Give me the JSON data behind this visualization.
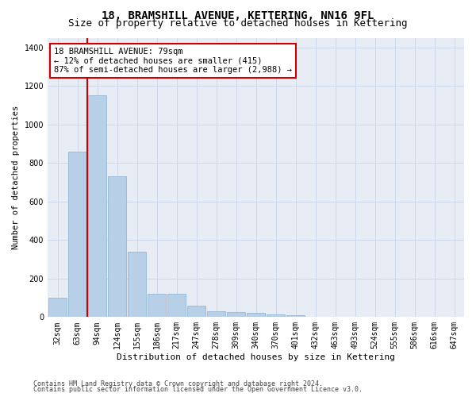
{
  "title": "18, BRAMSHILL AVENUE, KETTERING, NN16 9FL",
  "subtitle": "Size of property relative to detached houses in Kettering",
  "xlabel": "Distribution of detached houses by size in Kettering",
  "ylabel": "Number of detached properties",
  "categories": [
    "32sqm",
    "63sqm",
    "94sqm",
    "124sqm",
    "155sqm",
    "186sqm",
    "217sqm",
    "247sqm",
    "278sqm",
    "309sqm",
    "340sqm",
    "370sqm",
    "401sqm",
    "432sqm",
    "463sqm",
    "493sqm",
    "524sqm",
    "555sqm",
    "586sqm",
    "616sqm",
    "647sqm"
  ],
  "values": [
    100,
    860,
    1150,
    730,
    340,
    120,
    120,
    60,
    30,
    25,
    20,
    15,
    8,
    0,
    0,
    0,
    0,
    0,
    0,
    0,
    0
  ],
  "bar_color": "#b8cfe8",
  "bar_edge_color": "#8ab0d0",
  "red_line_color": "#cc0000",
  "red_line_x": 1.5,
  "annotation_text": "18 BRAMSHILL AVENUE: 79sqm\n← 12% of detached houses are smaller (415)\n87% of semi-detached houses are larger (2,988) →",
  "annotation_box_color": "#ffffff",
  "annotation_box_edge": "#cc0000",
  "ylim": [
    0,
    1450
  ],
  "yticks": [
    0,
    200,
    400,
    600,
    800,
    1000,
    1200,
    1400
  ],
  "grid_color": "#c8d4e8",
  "background_color": "#e8edf5",
  "footer_line1": "Contains HM Land Registry data © Crown copyright and database right 2024.",
  "footer_line2": "Contains public sector information licensed under the Open Government Licence v3.0.",
  "title_fontsize": 10,
  "subtitle_fontsize": 9,
  "xlabel_fontsize": 8,
  "ylabel_fontsize": 7.5,
  "tick_fontsize": 7,
  "annotation_fontsize": 7.5,
  "footer_fontsize": 6
}
